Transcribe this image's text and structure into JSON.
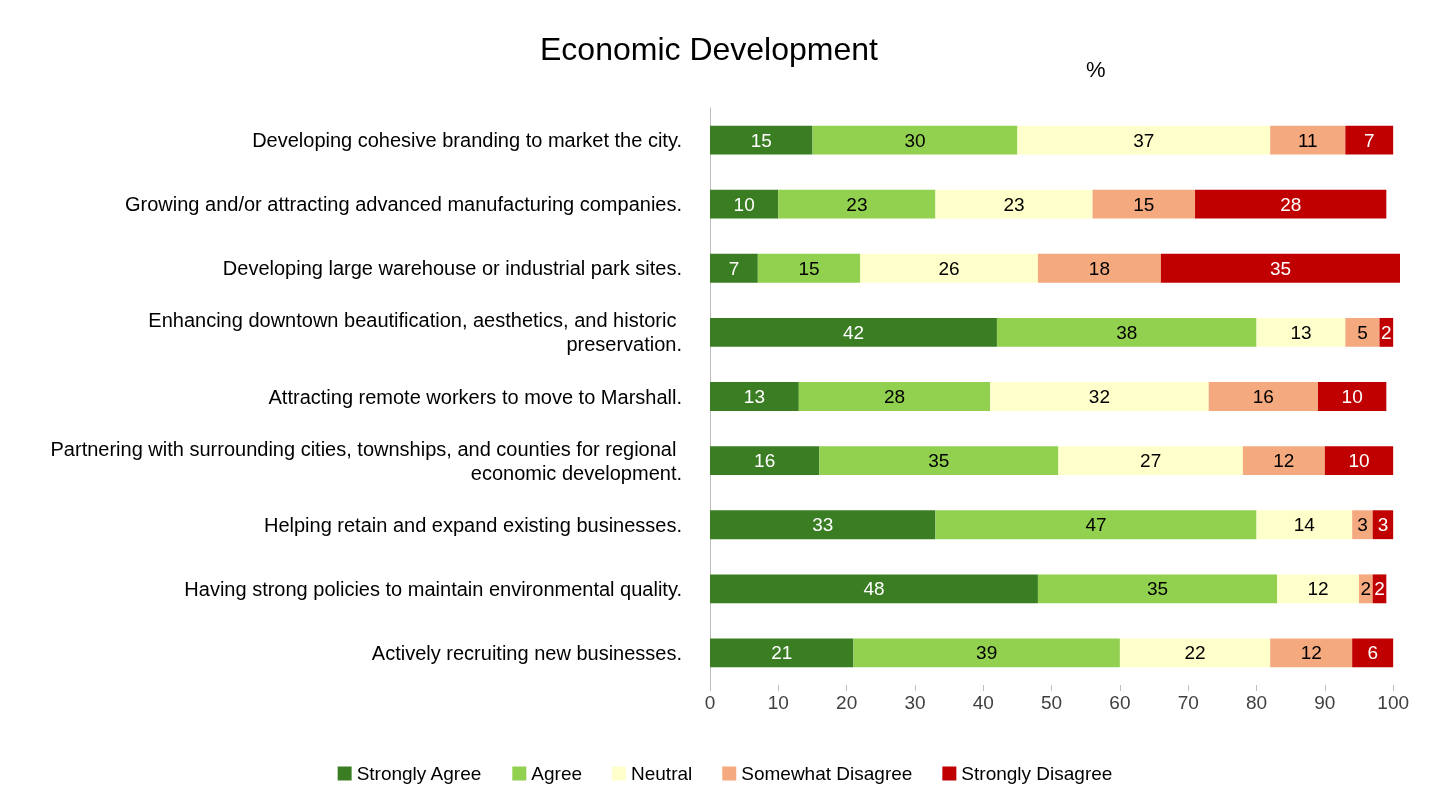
{
  "chart_data": {
    "type": "bar",
    "orientation": "horizontal",
    "stacked": true,
    "title": "Economic Development",
    "xlabel": "%",
    "categories": [
      "Developing cohesive branding to market the city.",
      "Growing and/or attracting advanced manufacturing companies.",
      "Developing large warehouse or industrial park sites.",
      "Enhancing downtown beautification, aesthetics, and historic preservation.",
      "Attracting remote workers to move to Marshall.",
      "Partnering with surrounding cities, townships, and counties for regional economic development.",
      "Helping retain and expand existing businesses.",
      "Having strong policies to maintain environmental quality.",
      "Actively recruiting new businesses."
    ],
    "series": [
      {
        "name": "Strongly Agree",
        "color": "#3a7d22",
        "values": [
          15,
          10,
          7,
          42,
          13,
          16,
          33,
          48,
          21
        ]
      },
      {
        "name": "Agree",
        "color": "#92d050",
        "values": [
          30,
          23,
          15,
          38,
          28,
          35,
          47,
          35,
          39
        ]
      },
      {
        "name": "Neutral",
        "color": "#ffffcc",
        "values": [
          37,
          23,
          26,
          13,
          32,
          27,
          14,
          12,
          22
        ]
      },
      {
        "name": "Somewhat Disagree",
        "color": "#f4a97f",
        "values": [
          11,
          15,
          18,
          5,
          16,
          12,
          3,
          2,
          12
        ]
      },
      {
        "name": "Strongly Disagree",
        "color": "#c00000",
        "values": [
          7,
          28,
          35,
          2,
          10,
          10,
          3,
          2,
          6
        ]
      }
    ],
    "xlim": [
      0,
      101
    ],
    "xticks": [
      0,
      10,
      20,
      30,
      40,
      50,
      60,
      70,
      80,
      90,
      100
    ],
    "data_labels": true,
    "grid": false,
    "legend": "bottom"
  }
}
